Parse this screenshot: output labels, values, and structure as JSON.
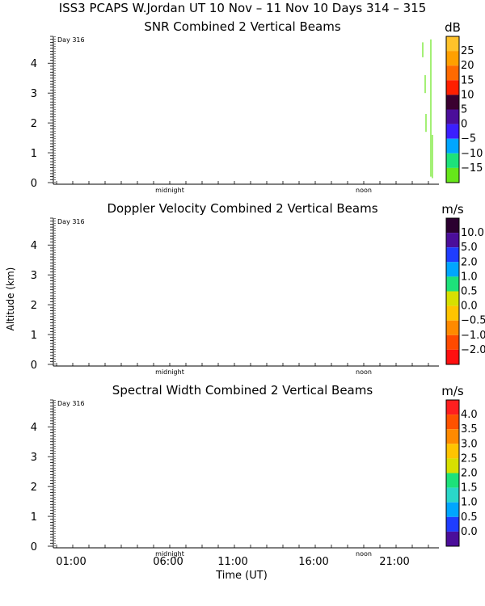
{
  "page_title": "ISS3 PCAPS W.Jordan UT  10 Nov – 11 Nov 10 Days 314 – 315",
  "y_axis_label": "Altitude (km)",
  "x_axis_label": "Time (UT)",
  "x_tick_labels": [
    "01:00",
    "06:00",
    "11:00",
    "16:00",
    "21:00"
  ],
  "chart_data": [
    {
      "type": "heatmap",
      "title": "SNR Combined 2 Vertical Beams",
      "ylabel": "Altitude (km)",
      "ylim": [
        0,
        4.9
      ],
      "y_ticks": [
        0,
        1,
        2,
        3,
        4
      ],
      "x_ticks": [
        "01:00",
        "06:00",
        "11:00",
        "16:00",
        "21:00"
      ],
      "annotations": [
        "Day 316",
        "midnight",
        "noon"
      ],
      "colorbar": {
        "unit": "dB",
        "labels": [
          "25",
          "20",
          "15",
          "10",
          "5",
          "0",
          "−5",
          "−10",
          "−15"
        ],
        "colors": [
          "#ffc22a",
          "#ffa000",
          "#ff6a00",
          "#ff1f00",
          "#3a0030",
          "#4b0e9a",
          "#3b1fff",
          "#00a6ff",
          "#1de27a",
          "#66e61a"
        ]
      },
      "note": "Sparse green returns only at the right edge near 23:00–23:40 UT"
    },
    {
      "type": "heatmap",
      "title": "Doppler Velocity Combined 2 Vertical Beams",
      "ylabel": "Altitude (km)",
      "ylim": [
        0,
        4.9
      ],
      "y_ticks": [
        0,
        1,
        2,
        3,
        4
      ],
      "x_ticks": [
        "01:00",
        "06:00",
        "11:00",
        "16:00",
        "21:00"
      ],
      "annotations": [
        "Day 316",
        "midnight",
        "noon"
      ],
      "colorbar": {
        "unit": "m/s",
        "labels": [
          "10.0",
          "5.0",
          "2.0",
          "1.0",
          "0.5",
          "0.0",
          "−0.5",
          "−1.0",
          "−2.0"
        ],
        "colors": [
          "#2b0030",
          "#4b0e9a",
          "#1f3dff",
          "#00a6ff",
          "#1de27a",
          "#d7e000",
          "#ffc400",
          "#ff8a00",
          "#ff4a00",
          "#ff1010"
        ]
      }
    },
    {
      "type": "heatmap",
      "title": "Spectral Width Combined 2 Vertical Beams",
      "ylabel": "Altitude (km)",
      "ylim": [
        0,
        4.9
      ],
      "y_ticks": [
        0,
        1,
        2,
        3,
        4
      ],
      "x_ticks": [
        "01:00",
        "06:00",
        "11:00",
        "16:00",
        "21:00"
      ],
      "annotations": [
        "Day 316",
        "midnight",
        "noon"
      ],
      "colorbar": {
        "unit": "m/s",
        "labels": [
          "4.0",
          "3.5",
          "3.0",
          "2.5",
          "2.0",
          "1.5",
          "1.0",
          "0.5",
          "0.0"
        ],
        "colors": [
          "#ff1f1f",
          "#ff5200",
          "#ff8a00",
          "#ffc400",
          "#d7e000",
          "#1de27a",
          "#2ad7c9",
          "#00a6ff",
          "#1f3dff",
          "#4b0e9a"
        ]
      }
    }
  ]
}
